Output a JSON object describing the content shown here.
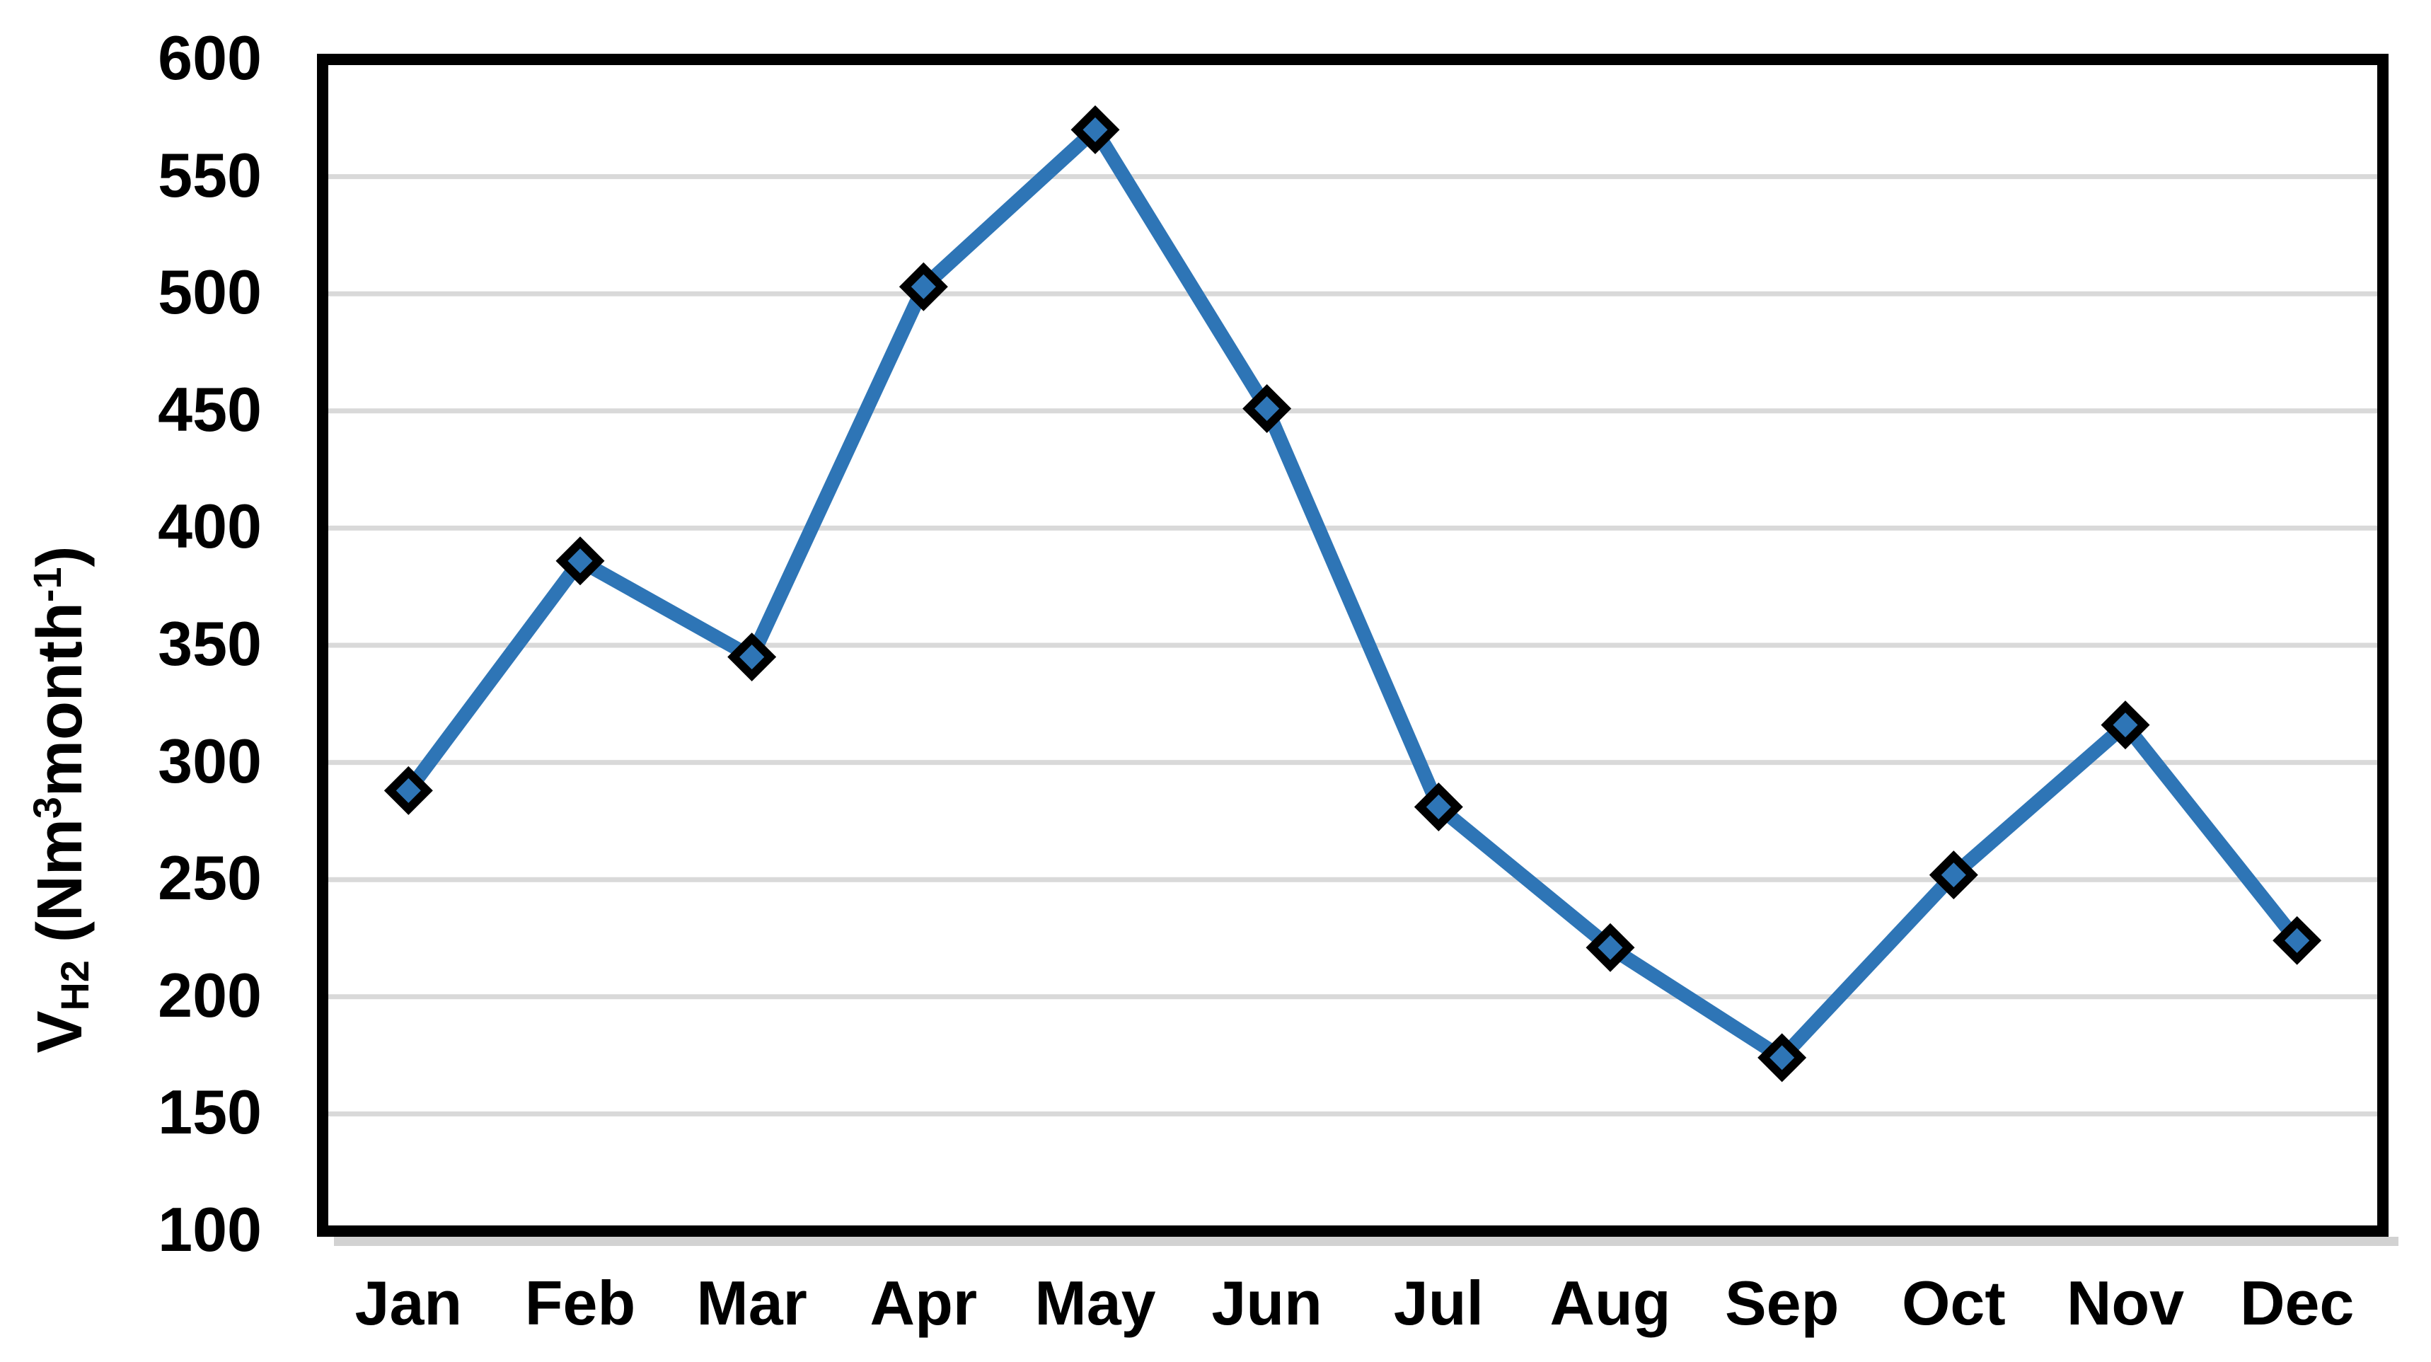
{
  "chart_data": {
    "type": "line",
    "title": "",
    "categories": [
      "Jan",
      "Feb",
      "Mar",
      "Apr",
      "May",
      "Jun",
      "Jul",
      "Aug",
      "Sep",
      "Oct",
      "Nov",
      "Dec"
    ],
    "series": [
      {
        "name": "VH2",
        "values": [
          288,
          386,
          345,
          503,
          570,
          451,
          281,
          221,
          174,
          252,
          316,
          224
        ]
      }
    ],
    "xlabel": "",
    "ylabel_rich": {
      "variable": "V",
      "variable_subscript": "H2",
      "unit_open": " (Nm",
      "unit_superscript_1": "3",
      "unit_mid": "month",
      "unit_superscript_2": "-1",
      "unit_close": ")"
    },
    "ylim": [
      100,
      600
    ],
    "ytick_step": 50,
    "yticks": [
      100,
      150,
      200,
      250,
      300,
      350,
      400,
      450,
      500,
      550,
      600
    ],
    "grid": "horizontal",
    "legend": "none",
    "marker": "diamond",
    "colors": {
      "line": "#2E75B6",
      "marker_fill": "#2E75B6",
      "marker_border": "#000000",
      "gridline": "#D9D9D9",
      "axis_frame": "#000000",
      "frame_shadow": "#D2D2D2",
      "background": "#FFFFFF",
      "text": "#000000"
    }
  }
}
